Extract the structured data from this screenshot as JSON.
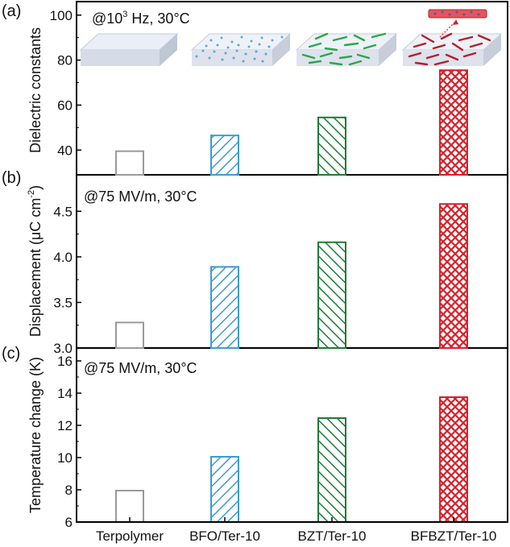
{
  "figure": {
    "x_categories": [
      "Terpolymer",
      "BFO/Ter-10",
      "BZT/Ter-10",
      "BFBZT/Ter-10"
    ],
    "colors": {
      "Terpolymer": "#9a9a9a",
      "BFO/Ter-10": "#3f9bd0",
      "BZT/Ter-10": "#1f7a36",
      "BFBZT/Ter-10": "#d8212a"
    },
    "patterns": [
      "none",
      "diagonal-up",
      "diagonal-down",
      "crosshatch"
    ],
    "panels": [
      {
        "tag": "(a)",
        "condition_pre": "@10",
        "condition_sup": "3",
        "condition_post": " Hz, 30°C",
        "ylabel": "Dielectric constants",
        "ylabel_sup": "",
        "ylabel_post": "",
        "ticks": [
          "40",
          "60",
          "80",
          "100"
        ],
        "schematic_icons": [
          "plain-film-icon",
          "bfo-nanoparticle-film-icon",
          "bzt-nanofiber-film-icon",
          "bfbzt-nanofiber-film-icon"
        ]
      },
      {
        "tag": "(b)",
        "condition_pre": "@75 MV/m, 30°C",
        "condition_sup": "",
        "condition_post": "",
        "ylabel": "Displacement (μC cm",
        "ylabel_sup": "-2",
        "ylabel_post": ")",
        "ticks": [
          "3.0",
          "3.5",
          "4.0",
          "4.5"
        ]
      },
      {
        "tag": "(c)",
        "condition_pre": "@75 MV/m, 30°C",
        "condition_sup": "",
        "condition_post": "",
        "ylabel": "Temperature change (K)",
        "ylabel_sup": "",
        "ylabel_post": "",
        "ticks": [
          "6",
          "8",
          "10",
          "12",
          "14",
          "16"
        ]
      }
    ]
  },
  "chart_data": [
    {
      "type": "bar",
      "categories": [
        "Terpolymer",
        "BFO/Ter-10",
        "BZT/Ter-10",
        "BFBZT/Ter-10"
      ],
      "values": [
        39.5,
        46.5,
        54.5,
        75.5
      ],
      "title": "@10³ Hz, 30°C",
      "xlabel": "",
      "ylabel": "Dielectric constants",
      "ylim": [
        29,
        106
      ],
      "yticks": [
        40,
        60,
        80,
        100
      ],
      "grid": false
    },
    {
      "type": "bar",
      "categories": [
        "Terpolymer",
        "BFO/Ter-10",
        "BZT/Ter-10",
        "BFBZT/Ter-10"
      ],
      "values": [
        3.28,
        3.89,
        4.16,
        4.58
      ],
      "title": "@75 MV/m, 30°C",
      "xlabel": "",
      "ylabel": "Displacement (μC cm⁻²)",
      "ylim": [
        3.0,
        4.9
      ],
      "yticks": [
        3.0,
        3.5,
        4.0,
        4.5
      ],
      "grid": false
    },
    {
      "type": "bar",
      "categories": [
        "Terpolymer",
        "BFO/Ter-10",
        "BZT/Ter-10",
        "BFBZT/Ter-10"
      ],
      "values": [
        7.95,
        10.05,
        12.45,
        13.75
      ],
      "title": "@75 MV/m, 30°C",
      "xlabel": "",
      "ylabel": "Temperature change (K)",
      "ylim": [
        6,
        16.8
      ],
      "yticks": [
        6,
        8,
        10,
        12,
        14,
        16
      ],
      "grid": false
    }
  ]
}
